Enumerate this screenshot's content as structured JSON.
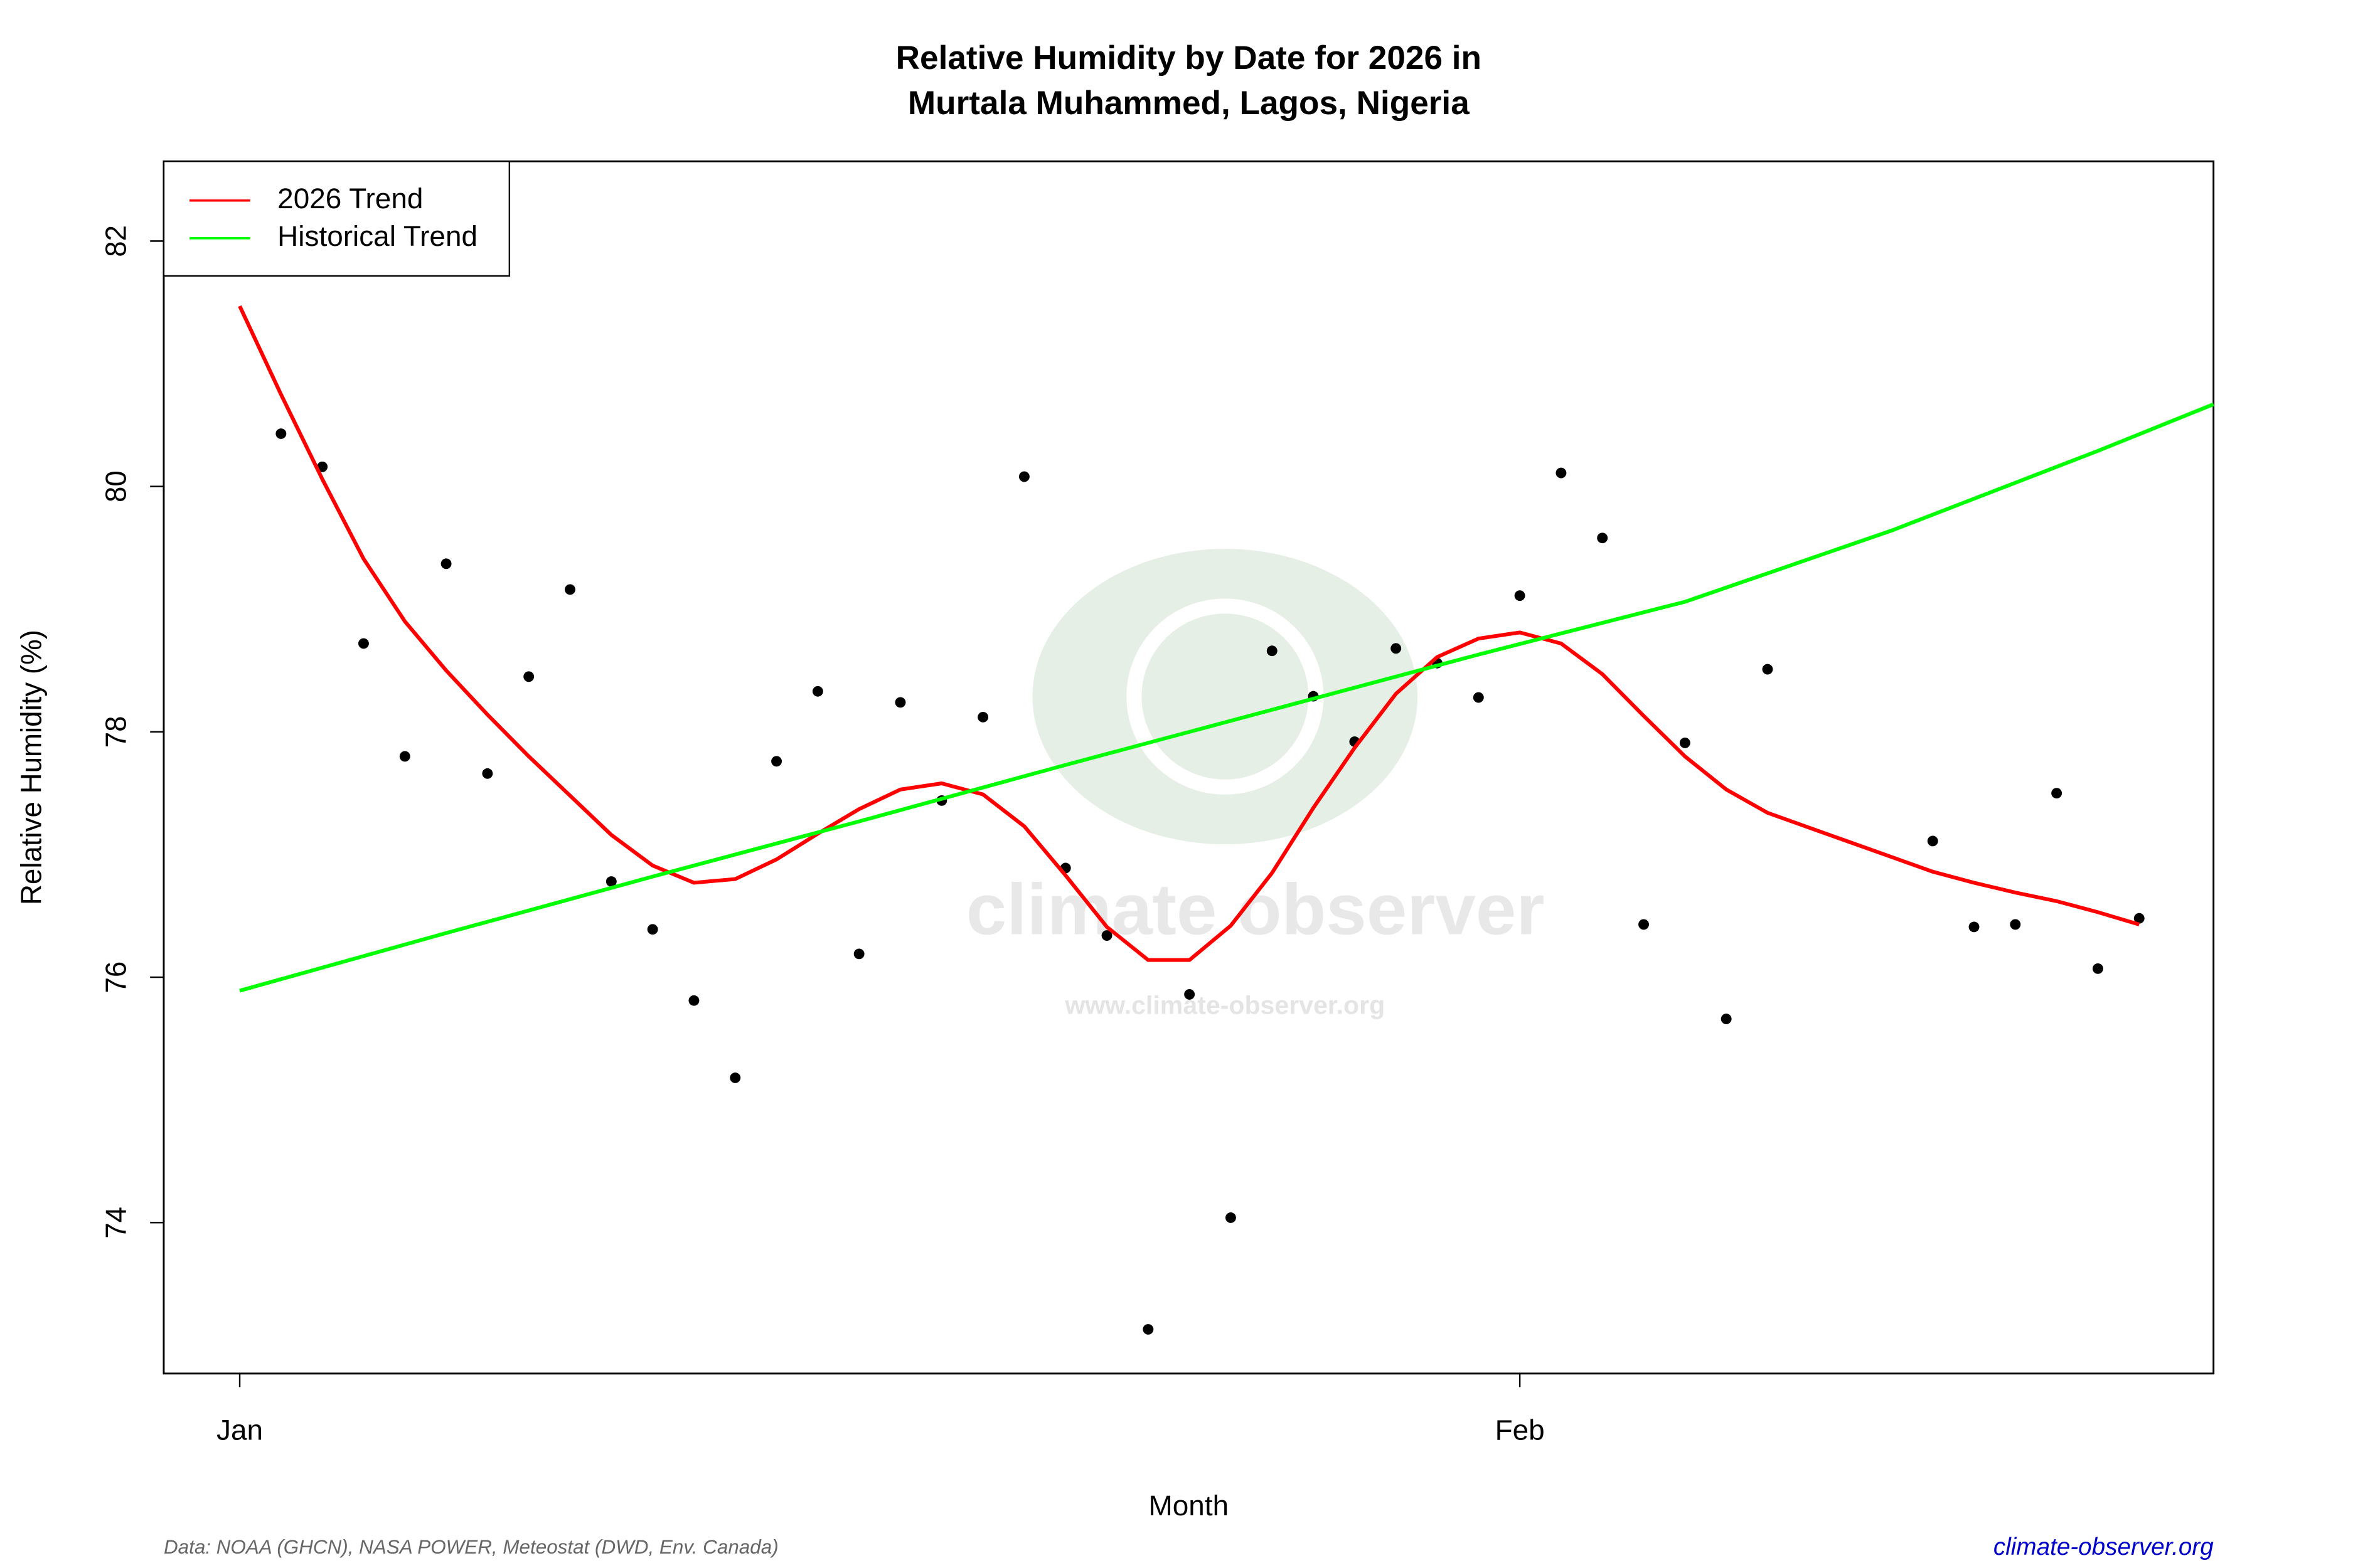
{
  "chart_data": {
    "type": "line",
    "title": [
      "Relative Humidity by Date for 2026 in",
      "Murtala Muhammed, Lagos, Nigeria"
    ],
    "x_label": "Month",
    "y_label": "Relative Humidity (%)",
    "xlim": [
      -0.84,
      48.8
    ],
    "ylim": [
      72.77,
      82.65
    ],
    "xticks": [
      {
        "value": 1,
        "label": "Jan"
      },
      {
        "value": 32,
        "label": "Feb"
      }
    ],
    "yticks": [
      74,
      76,
      78,
      80,
      82
    ],
    "legend": "top-left",
    "points": {
      "color": "#000000",
      "x": [
        2,
        3,
        4,
        5,
        6,
        7,
        8,
        9,
        10,
        11,
        12,
        13,
        14,
        15,
        16,
        17,
        18,
        19,
        20,
        21,
        22,
        23,
        24,
        25,
        26,
        27,
        28,
        29,
        30,
        31,
        32,
        33,
        34,
        35,
        36,
        37,
        38,
        42,
        43,
        44,
        45,
        46,
        47
      ],
      "values": [
        80.43,
        80.16,
        78.72,
        77.8,
        79.37,
        77.66,
        78.45,
        79.16,
        76.78,
        76.39,
        75.81,
        75.18,
        77.76,
        78.33,
        76.19,
        78.24,
        77.44,
        78.12,
        80.08,
        76.89,
        76.34,
        73.13,
        75.86,
        74.04,
        78.66,
        78.29,
        77.92,
        78.68,
        78.56,
        78.28,
        79.11,
        80.11,
        79.58,
        76.43,
        77.91,
        75.66,
        78.51,
        77.11,
        76.41,
        76.43,
        77.5,
        76.07,
        76.48
      ]
    },
    "series": [
      {
        "name": "2026 Trend",
        "color": "#ff0000",
        "x": [
          1,
          2,
          3,
          4,
          5,
          6,
          7,
          8,
          9,
          10,
          11,
          12,
          13,
          14,
          15,
          16,
          17,
          18,
          19,
          20,
          21,
          22,
          23,
          24,
          25,
          26,
          27,
          28,
          29,
          30,
          31,
          32,
          33,
          34,
          35,
          36,
          37,
          38,
          39,
          40,
          41,
          42,
          43,
          44,
          45,
          46,
          47
        ],
        "values": [
          81.47,
          80.75,
          80.06,
          79.41,
          78.9,
          78.5,
          78.14,
          77.8,
          77.48,
          77.16,
          76.91,
          76.77,
          76.8,
          76.96,
          77.17,
          77.37,
          77.53,
          77.58,
          77.49,
          77.23,
          76.83,
          76.41,
          76.14,
          76.14,
          76.42,
          76.85,
          77.38,
          77.87,
          78.31,
          78.61,
          78.76,
          78.81,
          78.72,
          78.47,
          78.13,
          77.8,
          77.53,
          77.34,
          77.22,
          77.1,
          76.98,
          76.86,
          76.77,
          76.69,
          76.62,
          76.53,
          76.43
        ]
      },
      {
        "name": "Historical Trend",
        "color": "#00ff00",
        "x": [
          1,
          6,
          11,
          16,
          21,
          26,
          31,
          36,
          41,
          46,
          48.8
        ],
        "values": [
          75.89,
          76.36,
          76.82,
          77.27,
          77.73,
          78.18,
          78.63,
          79.06,
          79.64,
          80.29,
          80.67
        ]
      }
    ],
    "watermark": [
      "climate observer",
      "www.climate-observer.org"
    ],
    "source": "Data: NOAA (GHCN), NASA POWER, Meteostat (DWD, Env. Canada)",
    "site": "climate-observer.org"
  }
}
